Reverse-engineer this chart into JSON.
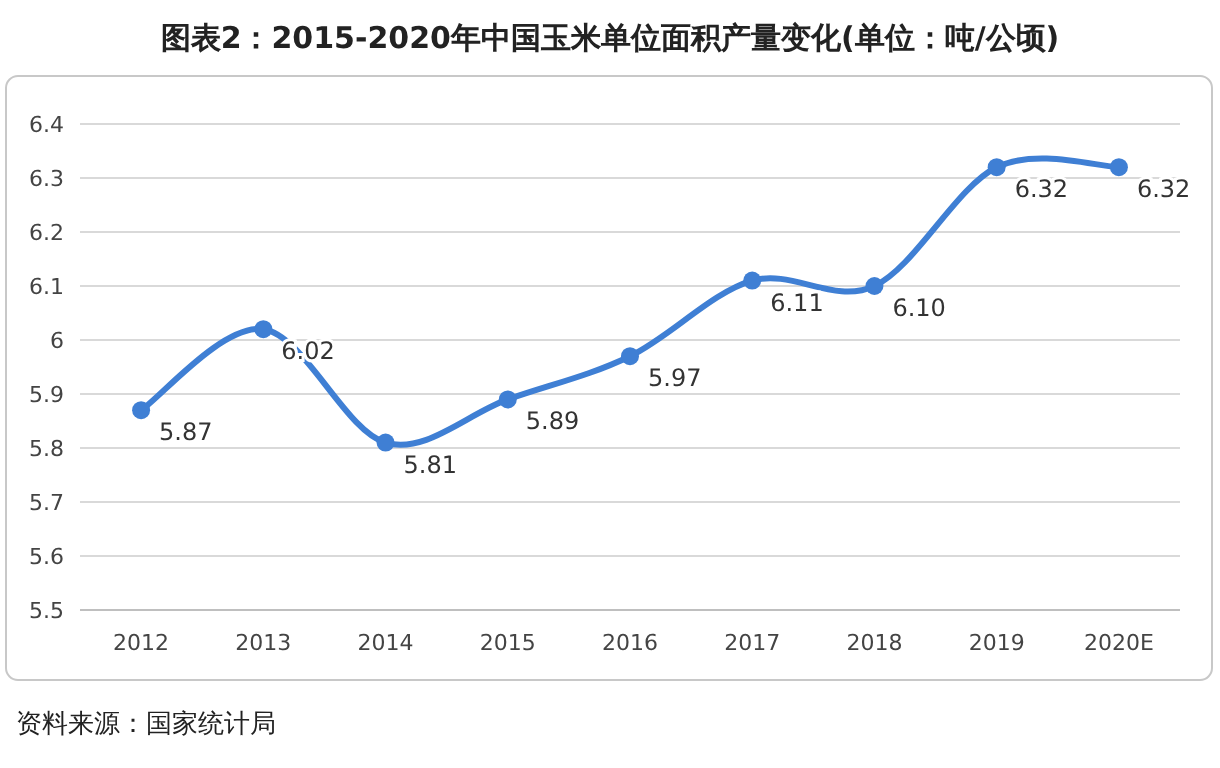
{
  "chart_data": {
    "type": "line",
    "title": "图表2：2015-2020年中国玉米单位面积产量变化(单位：吨/公顷)",
    "categories": [
      "2012",
      "2013",
      "2014",
      "2015",
      "2016",
      "2017",
      "2018",
      "2019",
      "2020E"
    ],
    "series": [
      {
        "color": "#3f7fd4",
        "values": [
          5.87,
          6.02,
          5.81,
          5.89,
          5.97,
          6.11,
          6.1,
          6.32,
          6.32
        ],
        "value_labels": [
          "5.87",
          "6.02",
          "5.81",
          "5.89",
          "5.97",
          "6.11",
          "6.10",
          "6.32",
          "6.32"
        ]
      }
    ],
    "ylim": [
      5.5,
      6.4
    ],
    "yticks": [
      5.5,
      5.6,
      5.7,
      5.8,
      5.9,
      {
        "value": 6,
        "label": "6"
      },
      6.1,
      6.2,
      6.3,
      6.4
    ],
    "grid": "y",
    "marker": "circle",
    "line_style": "solid",
    "annotations": [
      "资料来源：国家统计局"
    ]
  }
}
